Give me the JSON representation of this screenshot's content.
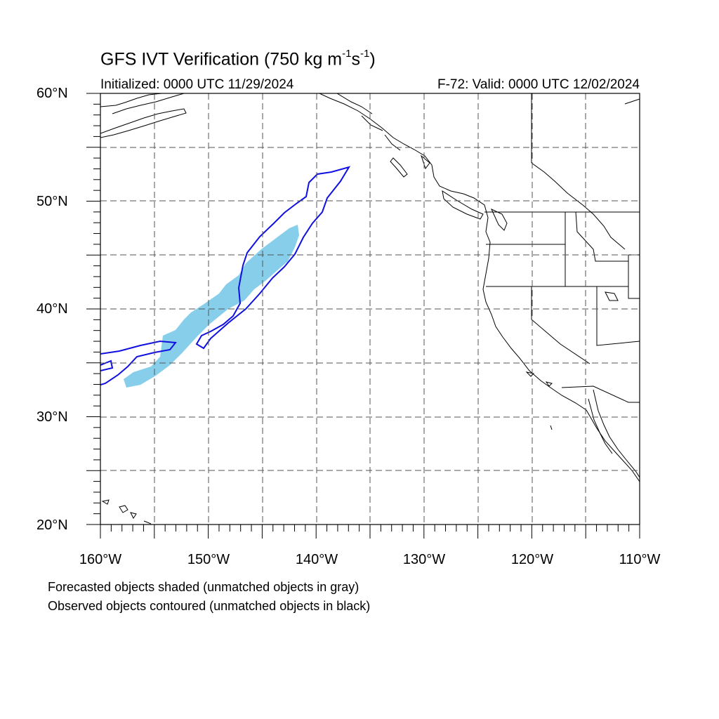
{
  "title": {
    "prefix": "GFS IVT Verification (750 kg m",
    "sup1": "-1",
    "mid": "s",
    "sup2": "-1",
    "suffix": ")"
  },
  "initialized": "Initialized: 0000 UTC 11/29/2024",
  "valid": "F-72: Valid: 0000 UTC 12/02/2024",
  "map": {
    "lon_range": [
      -160,
      -110
    ],
    "lat_range": [
      20,
      60
    ],
    "lat_labels": [
      "60°N",
      "50°N",
      "40°N",
      "30°N",
      "20°N"
    ],
    "lon_labels": [
      "160°W",
      "150°W",
      "140°W",
      "130°W",
      "120°W",
      "110°W"
    ],
    "gridlines": "dashed every 5°",
    "forecast_color": "#87ceeb",
    "observed_color": "#1010e0"
  },
  "legend": {
    "line1": "Forecasted objects shaded (unmatched objects in gray)",
    "line2": "Observed objects contoured (unmatched objects in black)"
  }
}
